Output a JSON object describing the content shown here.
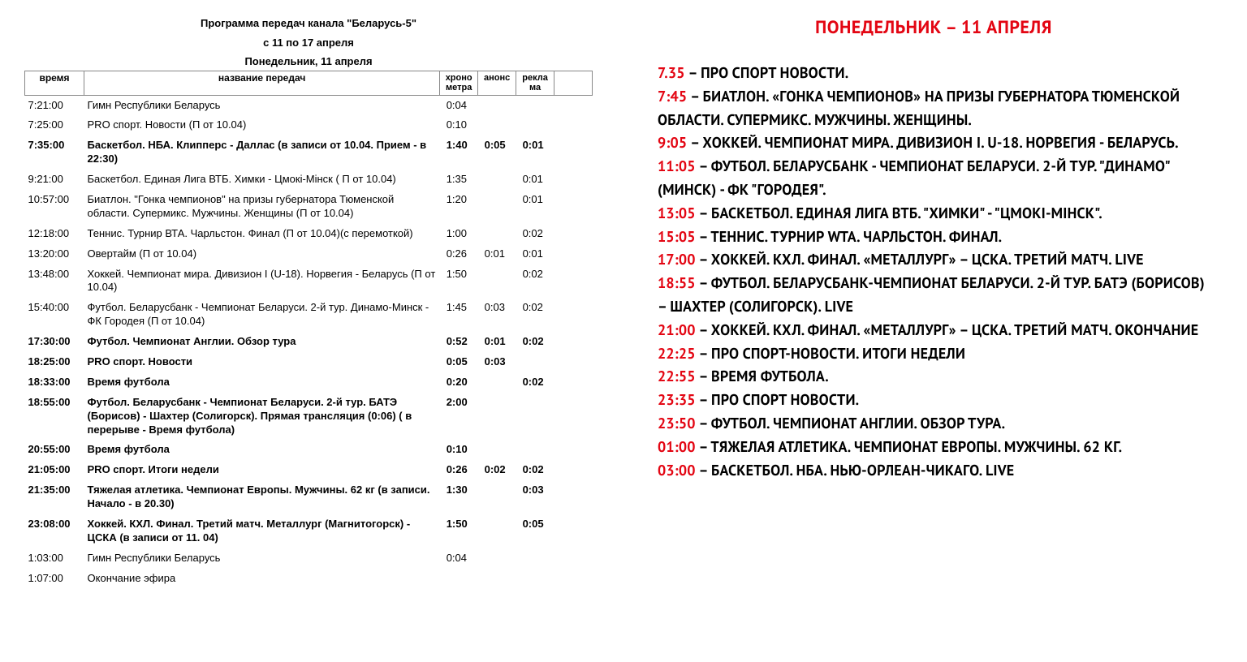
{
  "left": {
    "header_line1": "Программа передач канала \"Беларусь-5\"",
    "header_line2": "с 11 по 17 апреля",
    "subheader": "Понедельник, 11 апреля",
    "columns": {
      "time": "время",
      "name": "название передач",
      "chrono": "хроно метра",
      "anons": "анонс",
      "rekla": "рекла ма"
    },
    "rows": [
      {
        "time": "7:21:00",
        "name": "Гимн Республики Беларусь",
        "chrono": "0:04",
        "anons": "",
        "rekla": "",
        "bold": false
      },
      {
        "time": "7:25:00",
        "name": "PRO спорт. Новости (П от 10.04)",
        "chrono": "0:10",
        "anons": "",
        "rekla": "",
        "bold": false
      },
      {
        "time": "7:35:00",
        "name": "Баскетбол. НБА. Клипперс - Даллас (в записи от 10.04. Прием - в 22:30)",
        "chrono": "1:40",
        "anons": "0:05",
        "rekla": "0:01",
        "bold": true
      },
      {
        "time": "9:21:00",
        "name": "Баскетбол. Единая Лига ВТБ. Химки - Цмокі-Мінск ( П от 10.04)",
        "chrono": "1:35",
        "anons": "",
        "rekla": "0:01",
        "bold": false
      },
      {
        "time": "10:57:00",
        "name": "Биатлон. \"Гонка чемпионов\" на призы губернатора Тюменской области. Супермикс. Мужчины. Женщины (П от 10.04)",
        "chrono": "1:20",
        "anons": "",
        "rekla": "0:01",
        "bold": false
      },
      {
        "time": "12:18:00",
        "name": "Теннис. Турнир ВТА. Чарльстон. Финал (П от 10.04)(с перемоткой)",
        "chrono": "1:00",
        "anons": "",
        "rekla": "0:02",
        "bold": false
      },
      {
        "time": "13:20:00",
        "name": "Овертайм (П от 10.04)",
        "chrono": "0:26",
        "anons": "0:01",
        "rekla": "0:01",
        "bold": false
      },
      {
        "time": "13:48:00",
        "name": "Хоккей. Чемпионат мира. Дивизион I (U-18). Норвегия - Беларусь (П от 10.04)",
        "chrono": "1:50",
        "anons": "",
        "rekla": "0:02",
        "bold": false
      },
      {
        "time": "15:40:00",
        "name": "Футбол. Беларусбанк - Чемпионат Беларуси. 2-й тур. Динамо-Минск - ФК Городея (П от 10.04)",
        "chrono": "1:45",
        "anons": "0:03",
        "rekla": "0:02",
        "bold": false
      },
      {
        "time": "17:30:00",
        "name": "Футбол. Чемпионат Англии. Обзор тура",
        "chrono": "0:52",
        "anons": "0:01",
        "rekla": "0:02",
        "bold": true
      },
      {
        "time": "18:25:00",
        "name": "PRO спорт. Новости",
        "chrono": "0:05",
        "anons": "0:03",
        "rekla": "",
        "bold": true
      },
      {
        "time": "18:33:00",
        "name": "Время футбола",
        "chrono": "0:20",
        "anons": "",
        "rekla": "0:02",
        "bold": true
      },
      {
        "time": "18:55:00",
        "name": "Футбол. Беларусбанк - Чемпионат Беларуси. 2-й тур. БАТЭ (Борисов) - Шахтер (Солигорск). Прямая трансляция (0:06) ( в перерыве - Время футбола)",
        "chrono": "2:00",
        "anons": "",
        "rekla": "",
        "bold": true
      },
      {
        "time": "20:55:00",
        "name": "Время футбола",
        "chrono": "0:10",
        "anons": "",
        "rekla": "",
        "bold": true
      },
      {
        "time": "21:05:00",
        "name": "PRO спорт. Итоги недели",
        "chrono": "0:26",
        "anons": "0:02",
        "rekla": "0:02",
        "bold": true
      },
      {
        "time": "21:35:00",
        "name": "Тяжелая атлетика. Чемпионат Европы. Мужчины. 62 кг (в записи. Начало - в 20.30)",
        "chrono": "1:30",
        "anons": "",
        "rekla": "0:03",
        "bold": true
      },
      {
        "time": "23:08:00",
        "name": "Хоккей. КХЛ. Финал. Третий матч. Металлург (Магнитогорск) - ЦСКА (в записи от 11. 04)",
        "chrono": "1:50",
        "anons": "",
        "rekla": "0:05",
        "bold": true
      },
      {
        "time": "1:03:00",
        "name": "Гимн Республики Беларусь",
        "chrono": "0:04",
        "anons": "",
        "rekla": "",
        "bold": false
      },
      {
        "time": "1:07:00",
        "name": "Окончание эфира",
        "chrono": "",
        "anons": "",
        "rekla": "",
        "bold": false
      }
    ]
  },
  "right": {
    "header": "ПОНЕДЕЛЬНИК – 11 АПРЕЛЯ",
    "items": [
      {
        "time": "7.35",
        "text": " – ПРО СПОРТ НОВОСТИ."
      },
      {
        "time": "7:45",
        "text": " – БИАТЛОН. «ГОНКА ЧЕМПИОНОВ» НА ПРИЗЫ ГУБЕРНАТОРА ТЮМЕНСКОЙ ОБЛАСТИ. СУПЕРМИКС. МУЖЧИНЫ. ЖЕНЩИНЫ."
      },
      {
        "time": "9:05",
        "text": " – ХОККЕЙ. ЧЕМПИОНАТ МИРА. ДИВИЗИОН I. U-18. НОРВЕГИЯ - БЕЛАРУСЬ."
      },
      {
        "time": "11:05",
        "text": " – ФУТБОЛ. БЕЛАРУСБАНК - ЧЕМПИОНАТ БЕЛАРУСИ. 2-Й ТУР. \"ДИНАМО\" (МИНСК) - ФК \"ГОРОДЕЯ\"."
      },
      {
        "time": "13:05",
        "text": " – БАСКЕТБОЛ. ЕДИНАЯ ЛИГА ВТБ. \"ХИМКИ\" - \"ЦМОКІ-МІНСК\"."
      },
      {
        "time": "15:05",
        "text": " – ТЕННИС. ТУРНИР WTA. ЧАРЛЬСТОН. ФИНАЛ."
      },
      {
        "time": "17:00",
        "text": " – ХОККЕЙ. КХЛ. ФИНАЛ. «МЕТАЛЛУРГ» – ЦСКА. ТРЕТИЙ МАТЧ. LIVE"
      },
      {
        "time": "18:55",
        "text": " – ФУТБОЛ. БЕЛАРУСБАНК-ЧЕМПИОНАТ БЕЛАРУСИ. 2-Й ТУР. БАТЭ (БОРИСОВ) – ШАХТЕР (СОЛИГОРСК). LIVE"
      },
      {
        "time": "21:00",
        "text": " – ХОККЕЙ. КХЛ. ФИНАЛ. «МЕТАЛЛУРГ» – ЦСКА. ТРЕТИЙ МАТЧ. ОКОНЧАНИЕ"
      },
      {
        "time": "22:25",
        "text": " – ПРО СПОРТ-НОВОСТИ. ИТОГИ НЕДЕЛИ"
      },
      {
        "time": "22:55",
        "text": " – ВРЕМЯ ФУТБОЛА."
      },
      {
        "time": "23:35",
        "text": " – ПРО СПОРТ НОВОСТИ."
      },
      {
        "time": "23:50",
        "text": " – ФУТБОЛ. ЧЕМПИОНАТ АНГЛИИ. ОБЗОР ТУРА."
      },
      {
        "time": "01:00",
        "text": " – ТЯЖЕЛАЯ АТЛЕТИКА. ЧЕМПИОНАТ ЕВРОПЫ. МУЖЧИНЫ. 62 КГ."
      },
      {
        "time": "03:00",
        "text": " – БАСКЕТБОЛ. НБА. НЬЮ-ОРЛЕАН-ЧИКАГО. LIVE"
      }
    ]
  },
  "colors": {
    "red": "#e30613",
    "black": "#000000",
    "border": "#888888",
    "background": "#ffffff"
  }
}
